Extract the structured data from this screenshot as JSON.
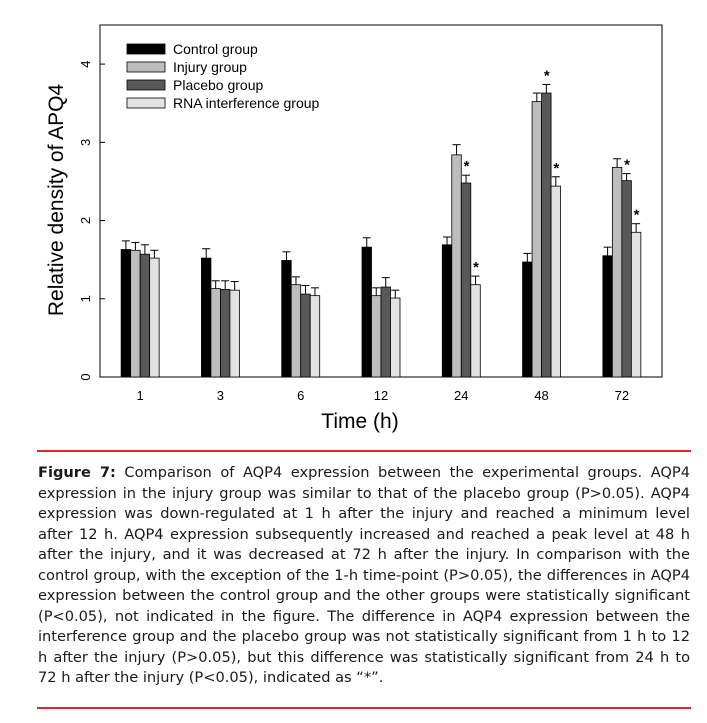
{
  "chart_data": {
    "type": "bar",
    "xlabel": "Time (h)",
    "ylabel": "Relative density of APQ4",
    "ylim": [
      0,
      4.5
    ],
    "yticks": [
      0,
      1,
      2,
      3,
      4
    ],
    "categories": [
      "1",
      "3",
      "6",
      "12",
      "24",
      "48",
      "72"
    ],
    "legend_position": "top-left",
    "series": [
      {
        "name": "Control group",
        "color": "#000000",
        "values": [
          1.63,
          1.52,
          1.49,
          1.66,
          1.69,
          1.47,
          1.55
        ],
        "errors": [
          0.11,
          0.12,
          0.11,
          0.12,
          0.1,
          0.11,
          0.11
        ]
      },
      {
        "name": "Injury group",
        "color": "#bdbdbd",
        "values": [
          1.62,
          1.13,
          1.18,
          1.04,
          2.84,
          3.52,
          2.68
        ],
        "errors": [
          0.1,
          0.1,
          0.1,
          0.1,
          0.13,
          0.11,
          0.11
        ]
      },
      {
        "name": "Placebo group",
        "color": "#595959",
        "values": [
          1.57,
          1.12,
          1.06,
          1.15,
          2.48,
          3.63,
          2.51
        ],
        "errors": [
          0.12,
          0.11,
          0.11,
          0.12,
          0.1,
          0.11,
          0.09
        ]
      },
      {
        "name": "RNA interference group",
        "color": "#e2e2e2",
        "values": [
          1.52,
          1.11,
          1.04,
          1.01,
          1.18,
          2.44,
          1.85
        ],
        "errors": [
          0.1,
          0.11,
          0.1,
          0.1,
          0.11,
          0.12,
          0.11
        ]
      }
    ],
    "significance_markers": [
      {
        "category": "24",
        "series": "Placebo group",
        "label": "*"
      },
      {
        "category": "24",
        "series": "RNA interference group",
        "label": "*"
      },
      {
        "category": "48",
        "series": "Placebo group",
        "label": "*"
      },
      {
        "category": "48",
        "series": "RNA interference group",
        "label": "*"
      },
      {
        "category": "72",
        "series": "Placebo group",
        "label": "*"
      },
      {
        "category": "72",
        "series": "RNA interference group",
        "label": "*"
      }
    ]
  },
  "caption": {
    "label": "Figure 7:",
    "text": "Comparison of AQP4 expression between the experimental groups. AQP4 expression in the injury group was similar to that of the placebo group (P>0.05). AQP4 expression was down-regulated at 1 h after the injury and reached a minimum level after 12 h. AQP4 expression subsequently increased and reached a peak level at 48 h after the injury, and it was decreased at 72 h after the injury. In comparison with the control group, with the exception of the 1-h time-point (P>0.05), the differences in AQP4 expression between the control group and the other groups were statistically significant (P<0.05), not indicated in the figure. The difference in AQP4 expression between the interference group and the placebo group was not statistically significant from 1 h to 12 h after the injury (P>0.05), but this difference was statistically significant from 24 h to 72 h after the injury (P<0.05), indicated as “*”."
  }
}
